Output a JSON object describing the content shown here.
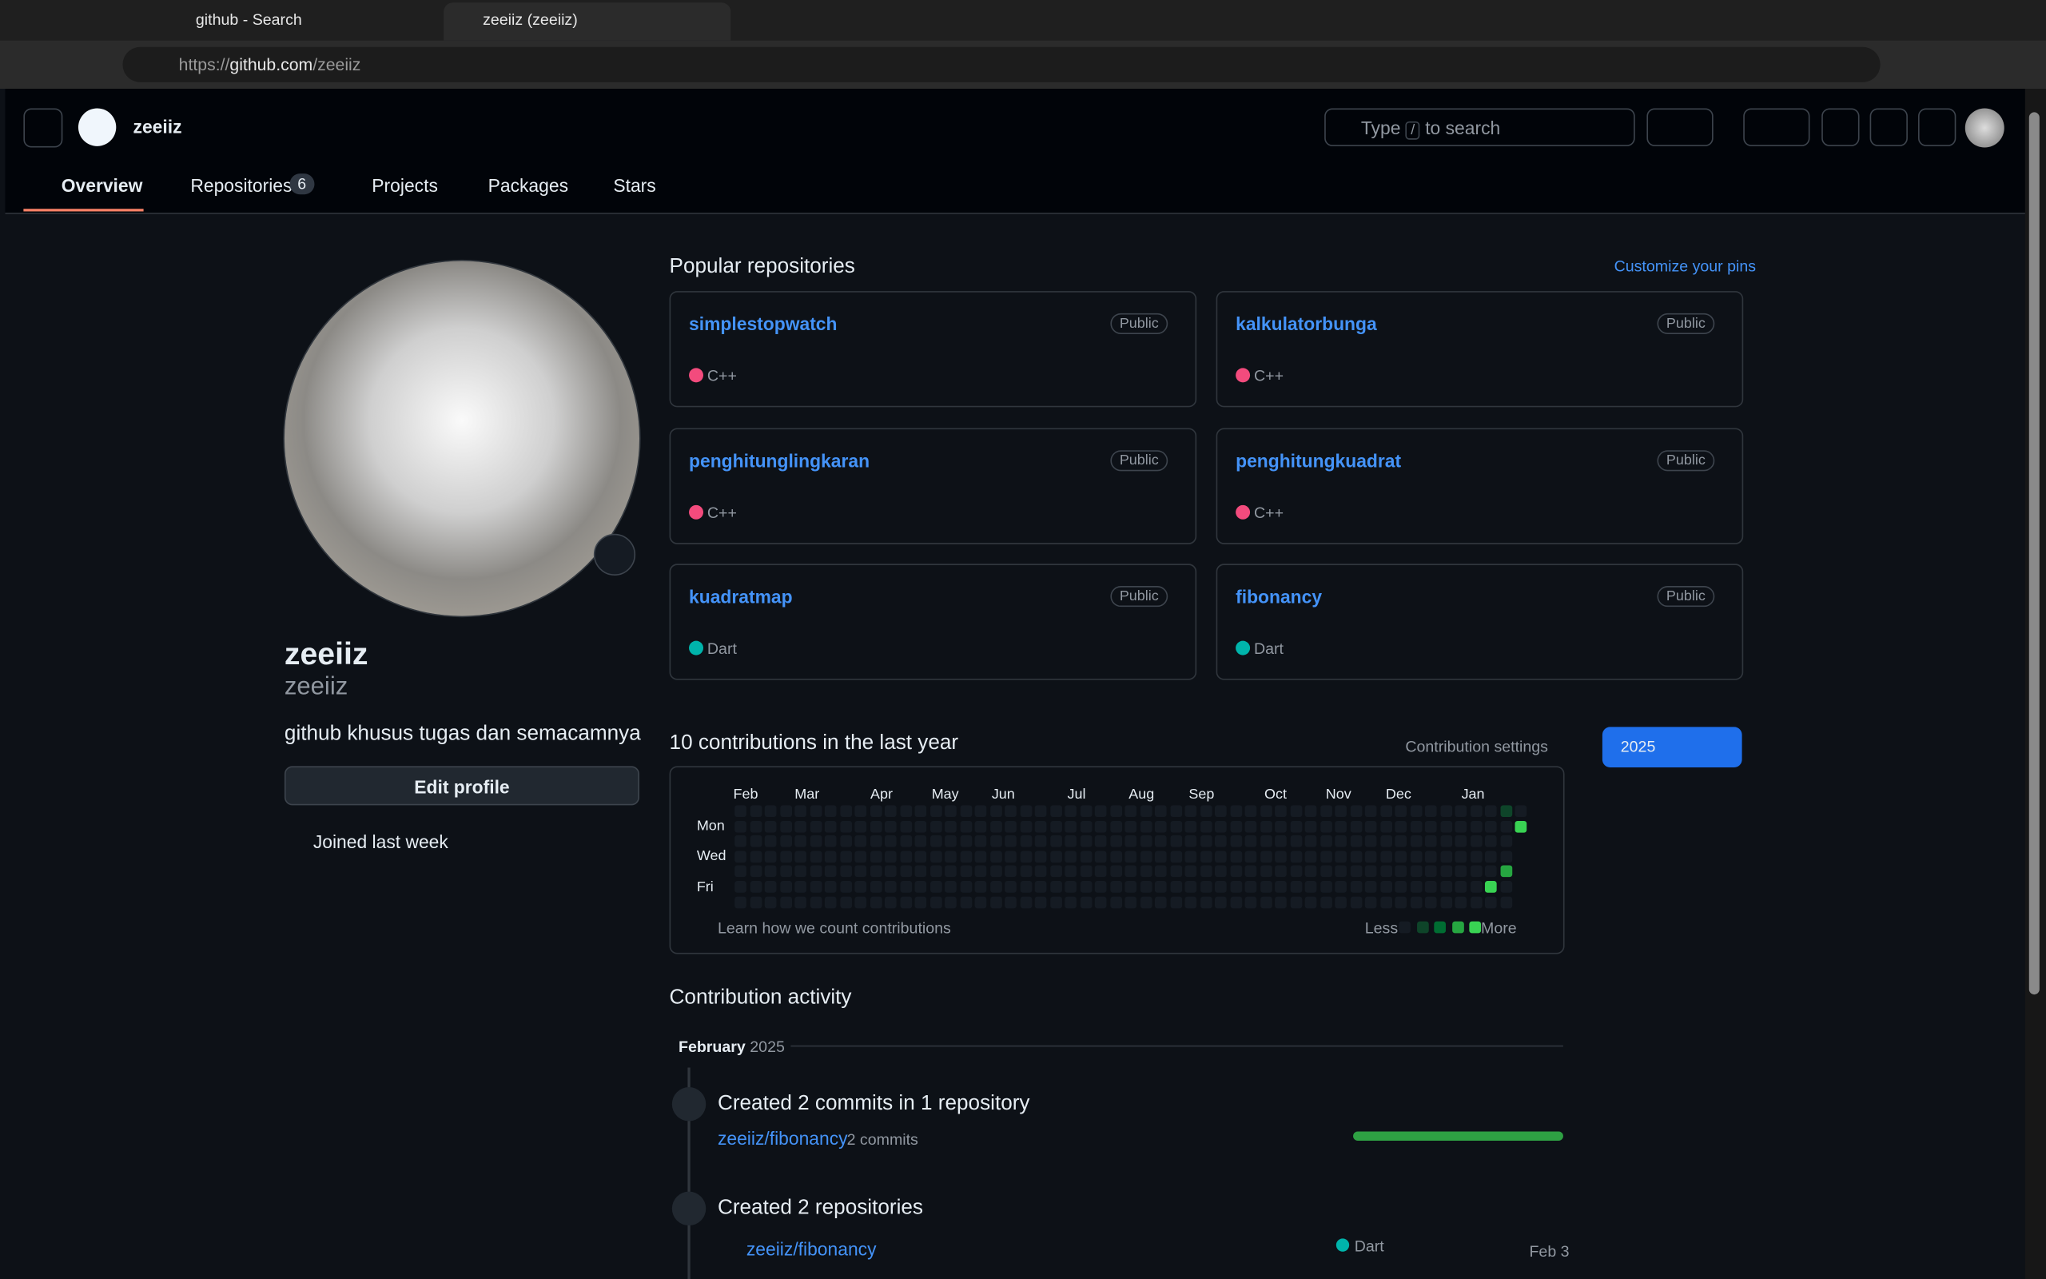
{
  "browser": {
    "tabs": [
      "github - Search",
      "zeeiiz (zeeiiz)"
    ],
    "url_scheme": "https://",
    "url_host": "github.com",
    "url_path": "/zeeiiz"
  },
  "header": {
    "username": "zeeiiz",
    "search_before": "Type",
    "search_key": "/",
    "search_after": "to search"
  },
  "nav": {
    "items": [
      {
        "label": "Overview"
      },
      {
        "label": "Repositories",
        "count": 6
      },
      {
        "label": "Projects"
      },
      {
        "label": "Packages"
      },
      {
        "label": "Stars"
      }
    ]
  },
  "profile": {
    "name": "zeeiiz",
    "login": "zeeiiz",
    "bio": "github khusus tugas dan semacamnya",
    "edit_button": "Edit profile",
    "joined": "Joined last week"
  },
  "popular": {
    "title": "Popular repositories",
    "customize": "Customize your pins",
    "repos": [
      {
        "name": "simplestopwatch",
        "visibility": "Public",
        "language": "C++",
        "language_color": "#f34b7d"
      },
      {
        "name": "kalkulatorbunga",
        "visibility": "Public",
        "language": "C++",
        "language_color": "#f34b7d"
      },
      {
        "name": "penghitunglingkaran",
        "visibility": "Public",
        "language": "C++",
        "language_color": "#f34b7d"
      },
      {
        "name": "penghitungkuadrat",
        "visibility": "Public",
        "language": "C++",
        "language_color": "#f34b7d"
      },
      {
        "name": "kuadratmap",
        "visibility": "Public",
        "language": "Dart",
        "language_color": "#00b4ab"
      },
      {
        "name": "fibonancy",
        "visibility": "Public",
        "language": "Dart",
        "language_color": "#00b4ab"
      }
    ]
  },
  "contributions": {
    "title": "10 contributions in the last year",
    "settings": "Contribution settings",
    "year": "2025",
    "months": [
      "Feb",
      "Mar",
      "Apr",
      "May",
      "Jun",
      "Jul",
      "Aug",
      "Sep",
      "Oct",
      "Nov",
      "Dec",
      "Jan"
    ],
    "days": [
      "Mon",
      "Wed",
      "Fri"
    ],
    "learn": "Learn how we count contributions",
    "less": "Less",
    "more": "More"
  },
  "activity": {
    "title": "Contribution activity",
    "month": "February",
    "year": "2025",
    "events": [
      {
        "title": "Created 2 commits in 1 repository",
        "repo": "zeeiiz/fibonancy",
        "detail": "2 commits"
      },
      {
        "title": "Created 2 repositories",
        "repo": "zeeiiz/fibonancy",
        "language": "Dart",
        "language_color": "#00b4ab",
        "date": "Feb 3"
      }
    ]
  }
}
